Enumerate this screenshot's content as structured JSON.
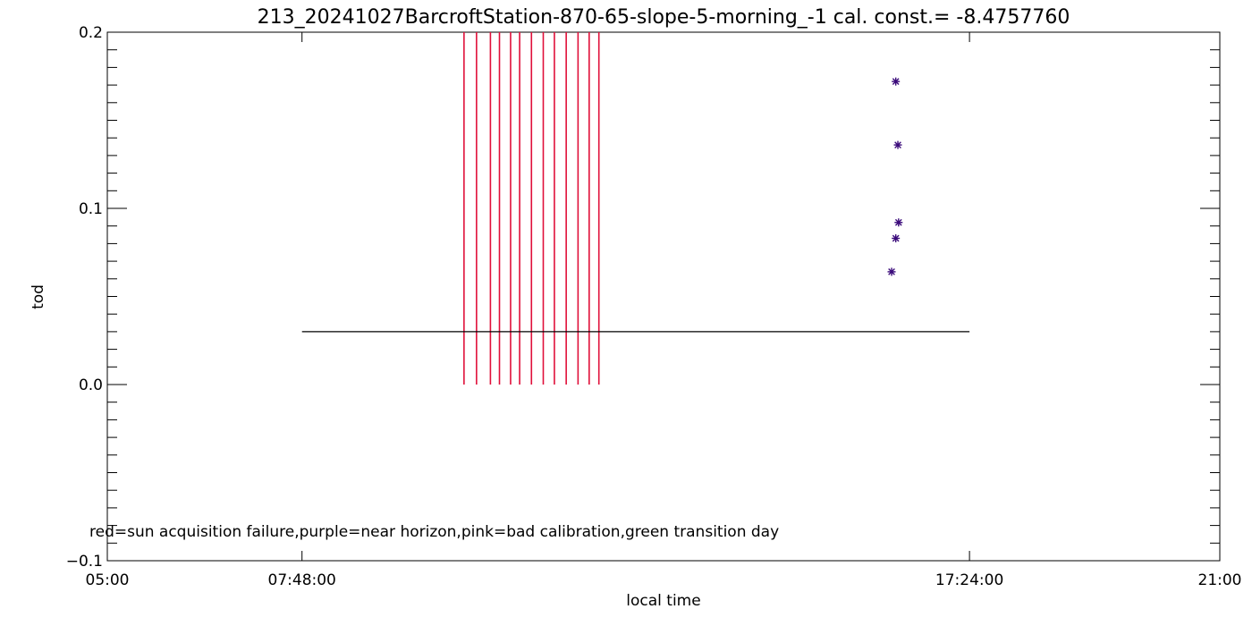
{
  "chart_data": {
    "type": "scatter",
    "title": "213_20241027BarcroftStation-870-65-slope-5-morning_-1 cal. const.= -8.4757760",
    "xlabel": "local time",
    "ylabel": "tod",
    "x_unit": "hours (local time)",
    "xlim": [
      5.0,
      21.0
    ],
    "ylim": [
      -0.1,
      0.2
    ],
    "x_ticks": [
      {
        "value": 5.0,
        "label": "05:00"
      },
      {
        "value": 7.8,
        "label": "07:48:00"
      },
      {
        "value": 17.4,
        "label": "17:24:00"
      },
      {
        "value": 21.0,
        "label": "21:00"
      }
    ],
    "y_ticks": [
      {
        "value": -0.1,
        "label": "−0.1"
      },
      {
        "value": 0.0,
        "label": "0.0"
      },
      {
        "value": 0.1,
        "label": "0.1"
      },
      {
        "value": 0.2,
        "label": "0.2"
      }
    ],
    "grid": false,
    "reference_line": {
      "y": 0.03,
      "x_start": 7.8,
      "x_end": 17.4,
      "color": "#000000"
    },
    "sun_acquisition_failures": {
      "color": "#e0103a",
      "y_from": 0.0,
      "y_to": 0.2,
      "x": [
        10.13,
        10.31,
        10.51,
        10.64,
        10.8,
        10.93,
        11.1,
        11.27,
        11.43,
        11.6,
        11.77,
        11.93,
        12.07
      ]
    },
    "near_horizon_points": {
      "color": "#3a0a7a",
      "marker": "*",
      "x": [
        16.28,
        16.34,
        16.38,
        16.37,
        16.34
      ],
      "y": [
        0.064,
        0.083,
        0.092,
        0.136,
        0.172
      ]
    },
    "legend_note": "red=sun acquisition failure,purple=near horizon,pink=bad calibration,green transition day"
  }
}
